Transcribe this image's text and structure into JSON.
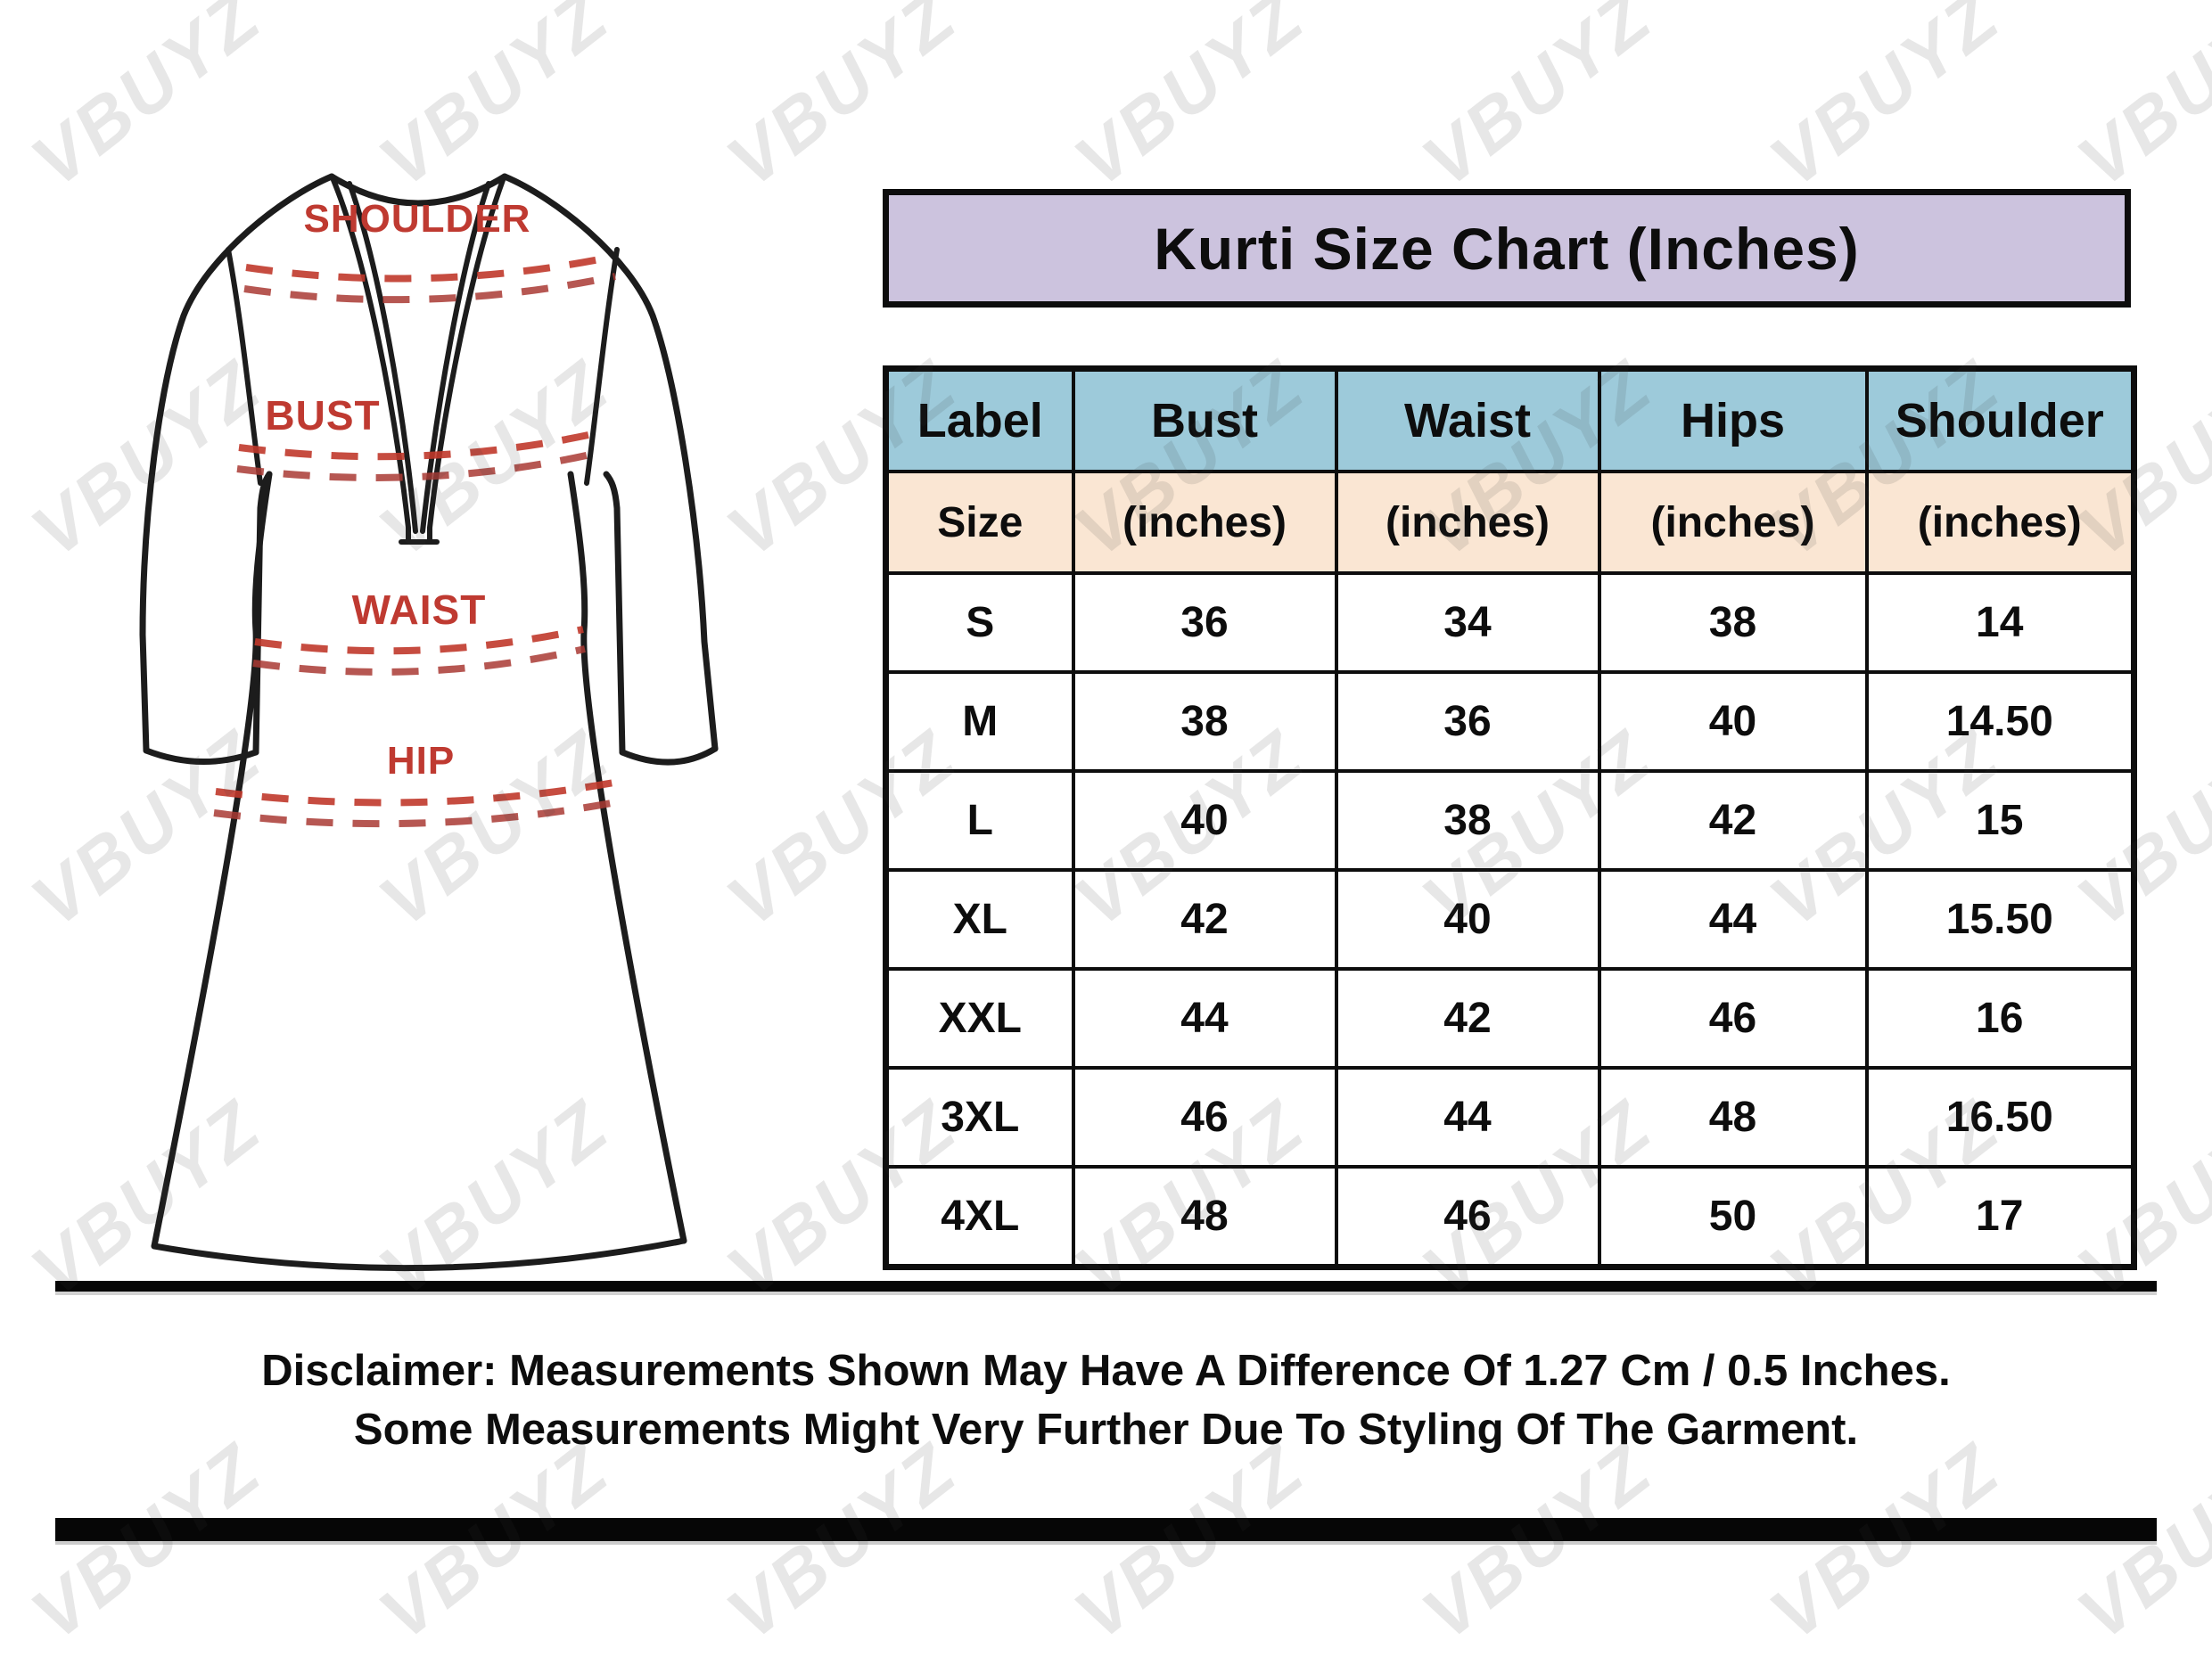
{
  "title": "Kurti Size Chart (Inches)",
  "branding": {
    "watermark": "VBUYZ"
  },
  "diagram": {
    "labels": {
      "shoulder": "SHOULDER",
      "bust": "BUST",
      "waist": "WAIST",
      "hip": "HIP"
    },
    "label_color": "#bf3a31",
    "dash_color": "#c0392b",
    "outline_color": "#1c1c1c"
  },
  "colors": {
    "title_bg": "#ccc3de",
    "header_bg": "#9dcada",
    "subheader_bg": "#fae6d3",
    "border": "#0d0d0d",
    "page_bg": "#ffffff"
  },
  "table": {
    "columns": [
      {
        "label": "Label",
        "sub": "Size"
      },
      {
        "label": "Bust",
        "sub": "(inches)"
      },
      {
        "label": "Waist",
        "sub": "(inches)"
      },
      {
        "label": "Hips",
        "sub": "(inches)"
      },
      {
        "label": "Shoulder",
        "sub": "(inches)"
      }
    ],
    "rows": [
      {
        "size": "S",
        "bust": "36",
        "waist": "34",
        "hips": "38",
        "shoulder": "14"
      },
      {
        "size": "M",
        "bust": "38",
        "waist": "36",
        "hips": "40",
        "shoulder": "14.50"
      },
      {
        "size": "L",
        "bust": "40",
        "waist": "38",
        "hips": "42",
        "shoulder": "15"
      },
      {
        "size": "XL",
        "bust": "42",
        "waist": "40",
        "hips": "44",
        "shoulder": "15.50"
      },
      {
        "size": "XXL",
        "bust": "44",
        "waist": "42",
        "hips": "46",
        "shoulder": "16"
      },
      {
        "size": "3XL",
        "bust": "46",
        "waist": "44",
        "hips": "48",
        "shoulder": "16.50"
      },
      {
        "size": "4XL",
        "bust": "48",
        "waist": "46",
        "hips": "50",
        "shoulder": "17"
      }
    ]
  },
  "disclaimer": {
    "line1": "Disclaimer: Measurements Shown May Have A Difference Of 1.27 Cm / 0.5 Inches.",
    "line2": "Some Measurements Might Very Further Due To Styling Of The Garment."
  },
  "chart_data": {
    "type": "table",
    "title": "Kurti Size Chart (Inches)",
    "columns": [
      "Label Size",
      "Bust (inches)",
      "Waist (inches)",
      "Hips (inches)",
      "Shoulder (inches)"
    ],
    "rows": [
      [
        "S",
        36,
        34,
        38,
        14
      ],
      [
        "M",
        38,
        36,
        40,
        14.5
      ],
      [
        "L",
        40,
        38,
        42,
        15
      ],
      [
        "XL",
        42,
        40,
        44,
        15.5
      ],
      [
        "XXL",
        44,
        42,
        46,
        16
      ],
      [
        "3XL",
        46,
        44,
        48,
        16.5
      ],
      [
        "4XL",
        48,
        46,
        50,
        17
      ]
    ],
    "notes": "Measurement points shown on garment diagram: SHOULDER, BUST, WAIST, HIP"
  }
}
